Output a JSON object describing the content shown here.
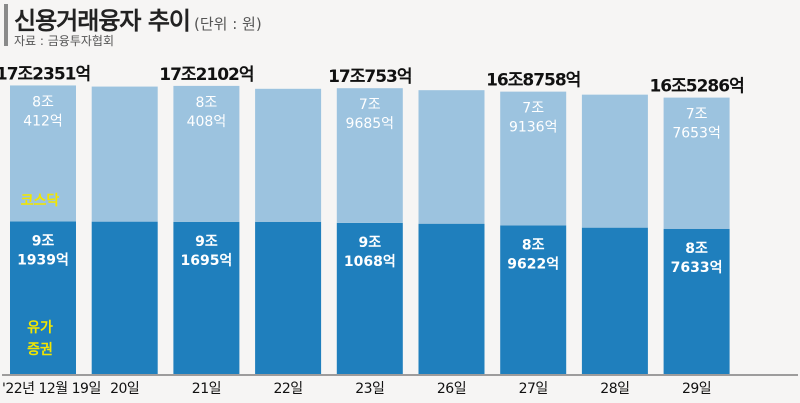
{
  "header": {
    "title": "신용거래융자 추이",
    "unit": "(단위 : 원)",
    "source": "자료 : 금융투자협회"
  },
  "colors": {
    "kosdaq": "#9cc3df",
    "kospi": "#1f7fbd",
    "legend_text": "#f2e600"
  },
  "chart_data": {
    "type": "bar",
    "stacked": true,
    "categories": [
      "'22년 12월 19일",
      "20일",
      "21일",
      "22일",
      "23일",
      "26일",
      "27일",
      "28일",
      "29일"
    ],
    "unit": "원",
    "series": [
      {
        "name": "유가증권",
        "legend_lines": [
          "유가",
          "증권"
        ],
        "values": [
          9.1939,
          9.18,
          9.1695,
          9.17,
          9.1068,
          9.06,
          8.9622,
          8.83,
          8.7633
        ],
        "labels": [
          [
            "9조",
            "1939억"
          ],
          null,
          [
            "9조",
            "1695억"
          ],
          null,
          [
            "9조",
            "1068억"
          ],
          null,
          [
            "8조",
            "9622억"
          ],
          null,
          [
            "8조",
            "7633억"
          ]
        ]
      },
      {
        "name": "코스닥",
        "legend_lines": [
          "코스닥"
        ],
        "values": [
          8.0412,
          7.99,
          8.0408,
          7.87,
          7.9685,
          7.9,
          7.9136,
          7.87,
          7.7653
        ],
        "labels": [
          [
            "8조",
            "412억"
          ],
          null,
          [
            "8조",
            "408억"
          ],
          null,
          [
            "7조",
            "9685억"
          ],
          null,
          [
            "7조",
            "9136억"
          ],
          null,
          [
            "7조",
            "7653억"
          ]
        ]
      }
    ],
    "totals": [
      "17조2351억",
      null,
      "17조2102억",
      null,
      "17조753억",
      null,
      "16조8758억",
      null,
      "16조5286억"
    ]
  }
}
